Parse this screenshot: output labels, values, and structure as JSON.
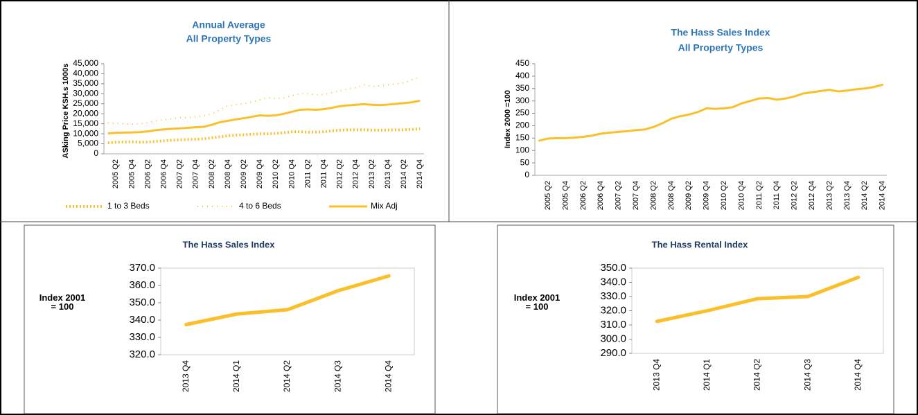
{
  "chart_data": [
    {
      "type": "line",
      "title": [
        "Annual Average",
        "All Property Types"
      ],
      "y_label": "ASking Price KSH.s 1000s",
      "categories": [
        null,
        "2005 Q2",
        null,
        "2005 Q4",
        null,
        "2006 Q2",
        null,
        "2006 Q4",
        null,
        "2007 Q2",
        null,
        "2007 Q4",
        null,
        "2008 Q2",
        null,
        "2008 Q4",
        null,
        "2009 Q2",
        null,
        "2009 Q4",
        null,
        "2010 Q2",
        null,
        "2010 Q4",
        null,
        "2011 Q2",
        null,
        "2011 Q4",
        null,
        "2012 Q2",
        null,
        "2012 Q4",
        null,
        "2013 Q2",
        null,
        "2013 Q4",
        null,
        "2014 Q2",
        null,
        "2014 Q4"
      ],
      "series": [
        {
          "name": "1 to 3 Beds",
          "color": "#fbbf2a",
          "values": [
            5500,
            5800,
            5900,
            6000,
            5800,
            5900,
            6200,
            6500,
            6800,
            7000,
            7200,
            7300,
            7500,
            8000,
            8500,
            9000,
            9300,
            9500,
            9800,
            10000,
            10000,
            10200,
            10500,
            11000,
            11000,
            10800,
            10800,
            11000,
            11500,
            11800,
            12000,
            12000,
            12000,
            11800,
            11800,
            11900,
            12000,
            12000,
            12200,
            12500
          ]
        },
        {
          "name": "4 to 6 Beds",
          "color": "#fbbf2a",
          "values": [
            15500,
            15200,
            15000,
            14800,
            15000,
            15500,
            16500,
            17000,
            17500,
            18000,
            18000,
            18500,
            19000,
            20000,
            22000,
            24000,
            24500,
            25000,
            26000,
            27000,
            28000,
            27500,
            28000,
            29000,
            30000,
            30000,
            29500,
            29500,
            30500,
            31500,
            32500,
            33000,
            34500,
            33500,
            34000,
            34500,
            35000,
            35500,
            37000,
            38500
          ]
        },
        {
          "name": "Mix Adj",
          "color": "#fbbf2a",
          "values": [
            10200,
            10500,
            10600,
            10700,
            10800,
            11200,
            11800,
            12200,
            12500,
            12700,
            13000,
            13300,
            13500,
            14500,
            15800,
            16500,
            17200,
            17800,
            18500,
            19200,
            19000,
            19200,
            20000,
            21000,
            22000,
            22200,
            22000,
            22300,
            23000,
            23800,
            24200,
            24500,
            24800,
            24500,
            24300,
            24600,
            25000,
            25300,
            25800,
            26500
          ]
        }
      ],
      "ylim": [
        0,
        45000
      ],
      "yticks": [
        0,
        {
          "value": 5000,
          "label": "5,000"
        },
        {
          "value": 10000,
          "label": "10,000"
        },
        {
          "value": 15000,
          "label": "15,000"
        },
        {
          "value": 20000,
          "label": "20,000"
        },
        {
          "value": 25000,
          "label": "25,000"
        },
        {
          "value": 30000,
          "label": "30,000"
        },
        {
          "value": 35000,
          "label": "35,000"
        },
        {
          "value": 40000,
          "label": "40,000"
        },
        {
          "value": 45000,
          "label": "45,000"
        }
      ]
    },
    {
      "type": "line",
      "title": [
        "The Hass Sales Index",
        "All Property Types"
      ],
      "y_label": "Index 2000 =100",
      "categories": [
        null,
        "2005 Q2",
        null,
        "2005 Q4",
        null,
        "2006 Q2",
        null,
        "2006 Q4",
        null,
        "2007 Q2",
        null,
        "2007 Q4",
        null,
        "2008 Q2",
        null,
        "2008 Q4",
        null,
        "2009 Q2",
        null,
        "2009 Q4",
        null,
        "2010 Q2",
        null,
        "2010 Q4",
        null,
        "2011 Q2",
        null,
        "2011 Q4",
        null,
        "2012 Q2",
        null,
        "2012 Q4",
        null,
        "2013 Q2",
        null,
        "2013 Q4",
        null,
        "2014 Q2",
        null,
        "2014 Q4"
      ],
      "values": [
        140,
        148,
        150,
        150,
        152,
        155,
        160,
        168,
        172,
        175,
        178,
        182,
        185,
        195,
        210,
        228,
        238,
        245,
        255,
        270,
        268,
        270,
        275,
        290,
        300,
        310,
        312,
        305,
        310,
        318,
        330,
        335,
        340,
        345,
        338,
        342,
        347,
        350,
        356,
        365
      ],
      "color": "#fbbf2a",
      "ylim": [
        0,
        450
      ],
      "yticks": [
        0,
        50,
        100,
        150,
        200,
        250,
        300,
        350,
        400,
        450
      ]
    },
    {
      "type": "line",
      "title": [
        "The Hass Sales Index"
      ],
      "y_label": "Index 2001 = 100",
      "categories": [
        "2013 Q4",
        "2014 Q1",
        "2014 Q2",
        "2014 Q3",
        "2014 Q4"
      ],
      "values": [
        337.4,
        343.5,
        346,
        357,
        365.5
      ],
      "color": "#fbbf2a",
      "ylim": [
        320,
        370
      ],
      "yticks": [
        {
          "value": 320,
          "label": "320.0"
        },
        {
          "value": 330,
          "label": "330.0"
        },
        {
          "value": 340,
          "label": "340.0"
        },
        {
          "value": 350,
          "label": "350.0"
        },
        {
          "value": 360,
          "label": "360.0"
        },
        {
          "value": 370,
          "label": "370.0"
        }
      ]
    },
    {
      "type": "line",
      "title": [
        "The Hass Rental Index"
      ],
      "y_label": "Index 2001 = 100",
      "categories": [
        "2013 Q4",
        "2014 Q1",
        "2014 Q2",
        "2014 Q3",
        "2014 Q4"
      ],
      "values": [
        312.5,
        320,
        328.5,
        330,
        343.5
      ],
      "color": "#fbbf2a",
      "ylim": [
        290,
        350
      ],
      "yticks": [
        {
          "value": 290,
          "label": "290.0"
        },
        {
          "value": 300,
          "label": "300.0"
        },
        {
          "value": 310,
          "label": "310.0"
        },
        {
          "value": 320,
          "label": "320.0"
        },
        {
          "value": 330,
          "label": "330.0"
        },
        {
          "value": 340,
          "label": "340.0"
        },
        {
          "value": 350,
          "label": "350.0"
        }
      ]
    }
  ]
}
